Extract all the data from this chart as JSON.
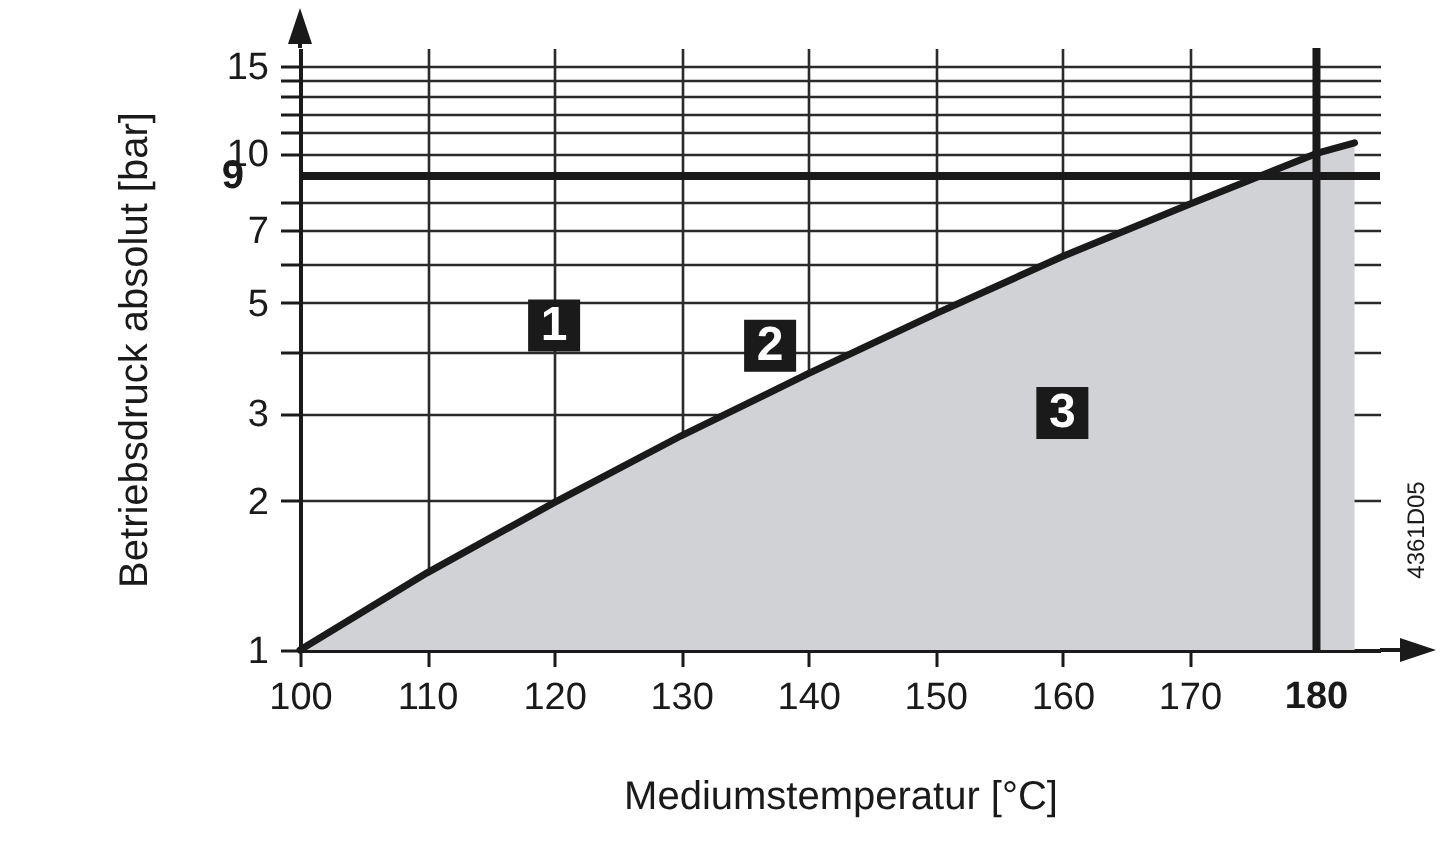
{
  "chart_data": {
    "type": "area",
    "xlabel": "Mediumstemperatur [°C]",
    "ylabel": "Betriebsdruck absolut [bar]",
    "x": [
      100,
      110,
      120,
      130,
      140,
      150,
      160,
      170,
      180,
      183
    ],
    "series": [
      {
        "color": "#d1d2d6",
        "values": [
          1,
          1.43,
          1.98,
          2.7,
          3.6,
          4.75,
          6.2,
          7.9,
          10,
          10.5
        ]
      }
    ],
    "log": true,
    "grid": true,
    "xlim": [
      100,
      185
    ],
    "ylim": [
      1,
      16.3
    ],
    "xticks": [
      100,
      110,
      120,
      130,
      140,
      150,
      160,
      170
    ],
    "yticks": [
      1,
      2,
      3,
      {
        "value": 4,
        "label": null
      },
      5,
      {
        "value": 6,
        "label": null
      },
      7,
      {
        "value": 8,
        "label": null
      },
      10,
      {
        "value": 11,
        "label": null
      },
      {
        "value": 12,
        "label": null
      },
      {
        "value": 13,
        "label": null
      },
      {
        "value": 14,
        "label": null
      },
      15
    ],
    "ref_lines": [
      {
        "axis": "y",
        "value": 9,
        "label": "9",
        "color": "#1a1a1a"
      },
      {
        "axis": "x",
        "value": 180,
        "label": "180",
        "color": "#1a1a1a"
      }
    ],
    "annotations": [
      {
        "text": "1",
        "x": 120,
        "y": 4.5
      },
      {
        "text": "2",
        "x": 137,
        "y": 4.1
      },
      {
        "text": "3",
        "x": 160,
        "y": 3.0
      },
      "4361D05"
    ]
  }
}
